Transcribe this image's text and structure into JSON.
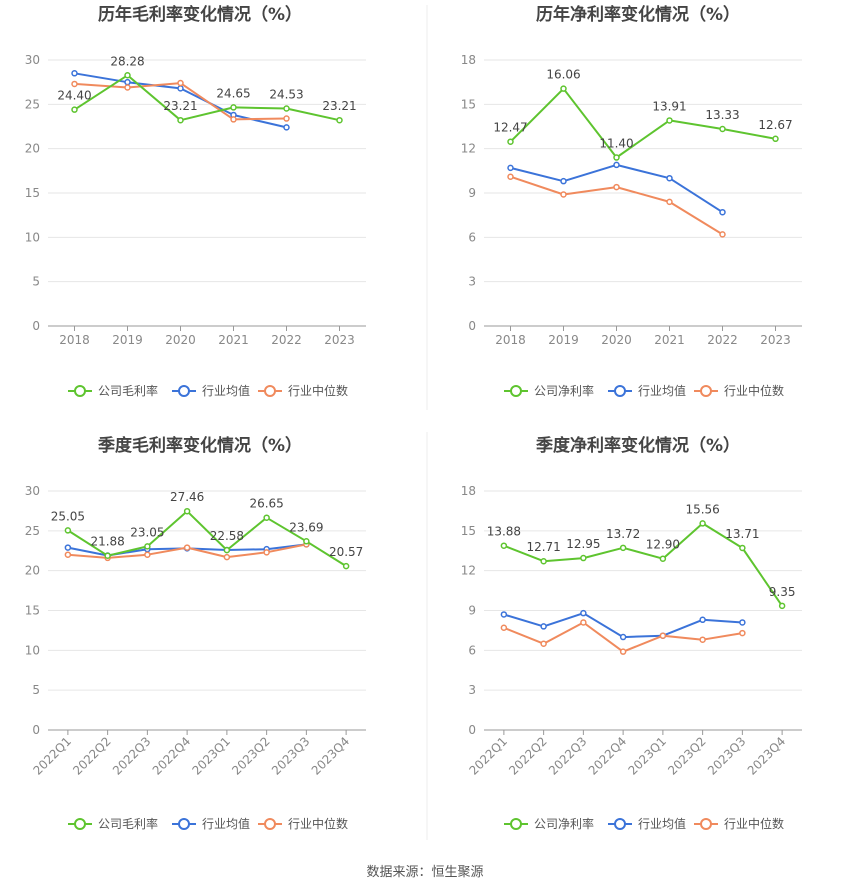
{
  "colors": {
    "company": "#5ec42f",
    "avg": "#3b73d9",
    "median": "#f08a5d",
    "grid": "#e6e6e6",
    "axis": "#999999",
    "divider": "#eeeeee"
  },
  "source_text": "数据来源：恒生聚源",
  "chart_data": [
    {
      "type": "line",
      "title": "历年毛利率变化情况（%）",
      "categories": [
        "2018",
        "2019",
        "2020",
        "2021",
        "2022",
        "2023"
      ],
      "ylim": [
        0,
        30
      ],
      "yticks": [
        0,
        5,
        10,
        15,
        20,
        25,
        30
      ],
      "grid": true,
      "legend_position": "bottom",
      "series": [
        {
          "name": "公司毛利率",
          "key": "company",
          "values": [
            24.4,
            28.28,
            23.21,
            24.65,
            24.53,
            23.21
          ],
          "labels": [
            "24.40",
            "28.28",
            "23.21",
            "24.65",
            "24.53",
            "23.21"
          ]
        },
        {
          "name": "行业均值",
          "key": "avg",
          "values": [
            28.5,
            27.5,
            26.8,
            23.8,
            22.4,
            null
          ]
        },
        {
          "name": "行业中位数",
          "key": "median",
          "values": [
            27.3,
            26.9,
            27.4,
            23.3,
            23.4,
            null
          ]
        }
      ]
    },
    {
      "type": "line",
      "title": "历年净利率变化情况（%）",
      "categories": [
        "2018",
        "2019",
        "2020",
        "2021",
        "2022",
        "2023"
      ],
      "ylim": [
        0,
        18
      ],
      "yticks": [
        0,
        3,
        6,
        9,
        12,
        15,
        18
      ],
      "grid": true,
      "legend_position": "bottom",
      "series": [
        {
          "name": "公司净利率",
          "key": "company",
          "values": [
            12.47,
            16.06,
            11.4,
            13.91,
            13.33,
            12.67
          ],
          "labels": [
            "12.47",
            "16.06",
            "11.40",
            "13.91",
            "13.33",
            "12.67"
          ]
        },
        {
          "name": "行业均值",
          "key": "avg",
          "values": [
            10.7,
            9.8,
            10.9,
            10.0,
            7.7,
            null
          ]
        },
        {
          "name": "行业中位数",
          "key": "median",
          "values": [
            10.1,
            8.9,
            9.4,
            8.4,
            6.2,
            null
          ]
        }
      ]
    },
    {
      "type": "line",
      "title": "季度毛利率变化情况（%）",
      "categories": [
        "2022Q1",
        "2022Q2",
        "2022Q3",
        "2022Q4",
        "2023Q1",
        "2023Q2",
        "2023Q3",
        "2023Q4"
      ],
      "ylim": [
        0,
        30
      ],
      "yticks": [
        0,
        5,
        10,
        15,
        20,
        25,
        30
      ],
      "grid": true,
      "legend_position": "bottom",
      "series": [
        {
          "name": "公司毛利率",
          "key": "company",
          "values": [
            25.05,
            21.88,
            23.05,
            27.46,
            22.58,
            26.65,
            23.69,
            20.57
          ],
          "labels": [
            "25.05",
            "21.88",
            "23.05",
            "27.46",
            "22.58",
            "26.65",
            "23.69",
            "20.57"
          ]
        },
        {
          "name": "行业均值",
          "key": "avg",
          "values": [
            22.9,
            21.9,
            22.7,
            22.8,
            22.6,
            22.7,
            23.3,
            null
          ]
        },
        {
          "name": "行业中位数",
          "key": "median",
          "values": [
            22.0,
            21.6,
            22.0,
            22.9,
            21.7,
            22.3,
            23.3,
            null
          ]
        }
      ]
    },
    {
      "type": "line",
      "title": "季度净利率变化情况（%）",
      "categories": [
        "2022Q1",
        "2022Q2",
        "2022Q3",
        "2022Q4",
        "2023Q1",
        "2023Q2",
        "2023Q3",
        "2023Q4"
      ],
      "ylim": [
        0,
        18
      ],
      "yticks": [
        0,
        3,
        6,
        9,
        12,
        15,
        18
      ],
      "grid": true,
      "legend_position": "bottom",
      "series": [
        {
          "name": "公司净利率",
          "key": "company",
          "values": [
            13.88,
            12.71,
            12.95,
            13.72,
            12.9,
            15.56,
            13.71,
            9.35
          ],
          "labels": [
            "13.88",
            "12.71",
            "12.95",
            "13.72",
            "12.90",
            "15.56",
            "13.71",
            "9.35"
          ]
        },
        {
          "name": "行业均值",
          "key": "avg",
          "values": [
            8.7,
            7.8,
            8.8,
            7.0,
            7.1,
            8.3,
            8.1,
            null
          ]
        },
        {
          "name": "行业中位数",
          "key": "median",
          "values": [
            7.7,
            6.5,
            8.1,
            5.9,
            7.1,
            6.8,
            7.3,
            null
          ]
        }
      ]
    }
  ]
}
